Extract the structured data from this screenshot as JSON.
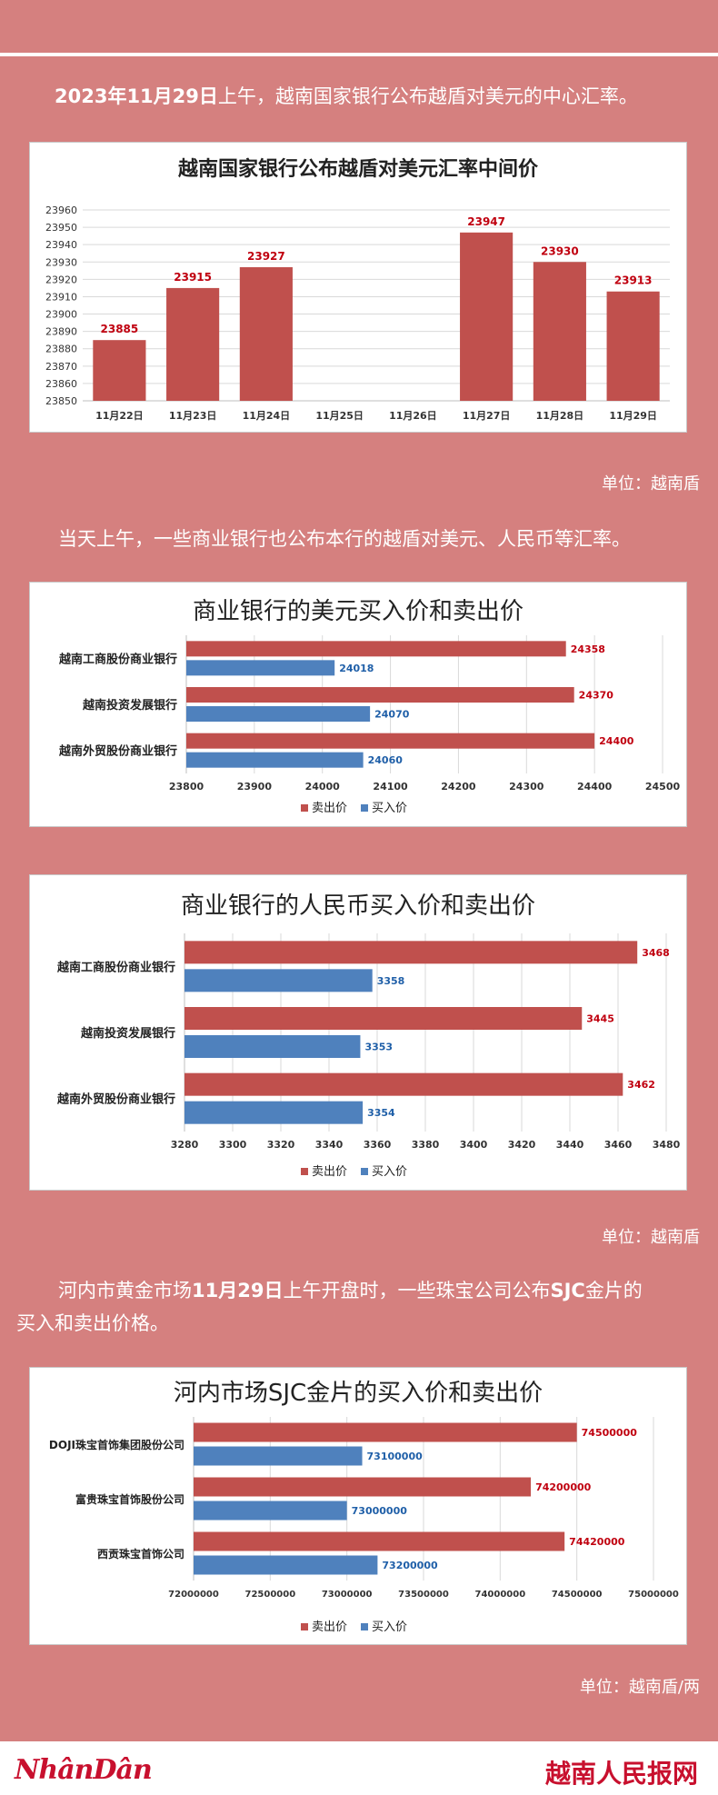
{
  "intro": {
    "date_part": "2023年11月29日",
    "text": "上午，越南国家银行公布越盾对美元的中心汇率。"
  },
  "para2": "当天上午，一些商业银行也公布本行的越盾对美元、人民币等汇率。",
  "para3": {
    "part1": "河内市黄金市场",
    "date": "11月29日",
    "part2": "上午开盘时，一些珠宝公司公布",
    "sjc": "SJC",
    "part3": "金片的",
    "line2": "买入和卖出价格。"
  },
  "units": {
    "u1": "单位：越南盾",
    "u2": "单位：越南盾",
    "u3": "单位：越南盾/两"
  },
  "logos": {
    "left": "NhânDân",
    "right": "越南人民报网"
  },
  "colors": {
    "sell": "#c0504d",
    "buy": "#4f81bd",
    "sell_label": "#c0000f",
    "buy_label": "#1f5fa8"
  },
  "chart_data": [
    {
      "type": "bar",
      "title": "越南国家银行公布越盾对美元汇率中间价",
      "categories": [
        "11月22日",
        "11月23日",
        "11月24日",
        "11月25日",
        "11月26日",
        "11月27日",
        "11月28日",
        "11月29日"
      ],
      "values": [
        23885,
        23915,
        23927,
        null,
        null,
        23947,
        23930,
        23913
      ],
      "value_labels": [
        "23885",
        "23915",
        "23927",
        "",
        "",
        "23947",
        "23930",
        "23913"
      ],
      "ylim": [
        23850,
        23960
      ],
      "yticks": [
        "23850",
        "23860",
        "23870",
        "23880",
        "23890",
        "23900",
        "23910",
        "23920",
        "23930",
        "23940",
        "23950",
        "23960"
      ],
      "grid": true
    },
    {
      "type": "bar",
      "orientation": "horizontal",
      "title": "商业银行的美元买入价和卖出价",
      "categories": [
        "越南工商股份商业银行",
        "越南投资发展银行",
        "越南外贸股份商业银行"
      ],
      "series": [
        {
          "name": "卖出价",
          "values": [
            24358,
            24370,
            24400
          ]
        },
        {
          "name": "买入价",
          "values": [
            24018,
            24070,
            24060
          ]
        }
      ],
      "xlim": [
        23800,
        24500
      ],
      "xticks": [
        "23800",
        "23900",
        "24000",
        "24100",
        "24200",
        "24300",
        "24400",
        "24500"
      ],
      "legend": "bottom"
    },
    {
      "type": "bar",
      "orientation": "horizontal",
      "title": "商业银行的人民币买入价和卖出价",
      "categories": [
        "越南工商股份商业银行",
        "越南投资发展银行",
        "越南外贸股份商业银行"
      ],
      "series": [
        {
          "name": "卖出价",
          "values": [
            3468,
            3445,
            3462
          ]
        },
        {
          "name": "买入价",
          "values": [
            3358,
            3353,
            3354
          ]
        }
      ],
      "xlim": [
        3280,
        3480
      ],
      "xticks": [
        "3280",
        "3300",
        "3320",
        "3340",
        "3360",
        "3380",
        "3400",
        "3420",
        "3440",
        "3460",
        "3480"
      ],
      "legend": "bottom"
    },
    {
      "type": "bar",
      "orientation": "horizontal",
      "title": "河内市场SJC金片的买入价和卖出价",
      "categories": [
        "DOJI珠宝首饰集团股份公司",
        "富贵珠宝首饰股份公司",
        "西贡珠宝首饰公司"
      ],
      "series": [
        {
          "name": "卖出价",
          "values": [
            74500000,
            74200000,
            74420000
          ]
        },
        {
          "name": "买入价",
          "values": [
            73100000,
            73000000,
            73200000
          ]
        }
      ],
      "xlim": [
        72000000,
        75000000
      ],
      "xticks": [
        "72000000",
        "72500000",
        "73000000",
        "73500000",
        "74000000",
        "74500000",
        "75000000"
      ],
      "legend": "bottom"
    }
  ]
}
